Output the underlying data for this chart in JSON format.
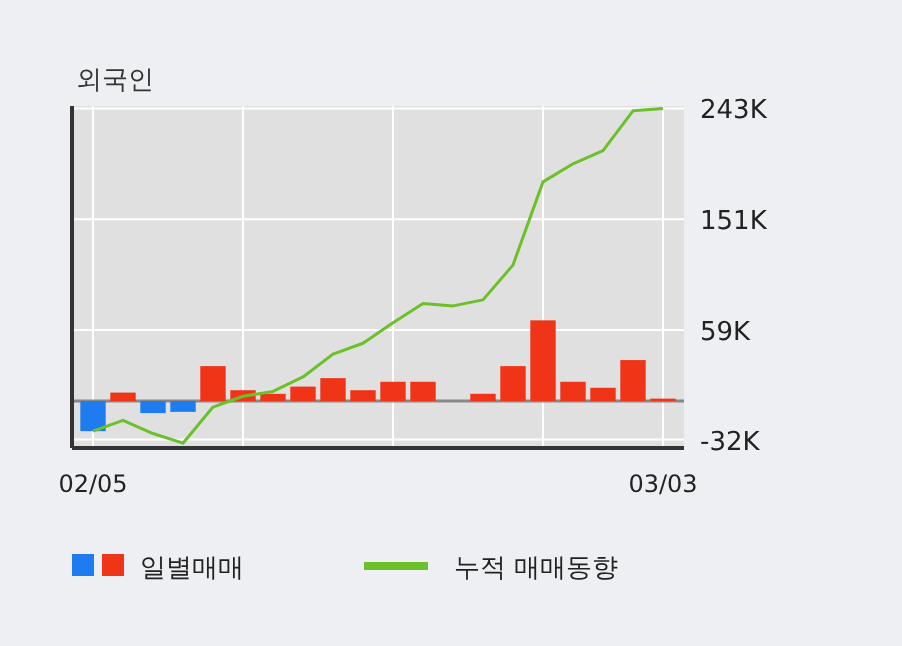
{
  "chart_data": {
    "type": "bar",
    "title": "외국인",
    "categories": [
      "02/05",
      null,
      null,
      null,
      null,
      null,
      null,
      null,
      null,
      null,
      null,
      null,
      null,
      null,
      null,
      null,
      null,
      null,
      null,
      "03/03"
    ],
    "series": [
      {
        "name": "일별매매",
        "colors": [
          "#1e7cf0",
          "#f03418",
          "#1e7cf0",
          "#1e7cf0",
          "#f03418",
          "#f03418",
          "#f03418",
          "#f03418",
          "#f03418",
          "#f03418",
          "#f03418",
          "#f03418",
          "#f03418",
          "#f03418",
          "#f03418",
          "#f03418",
          "#f03418",
          "#f03418",
          "#f03418",
          "#f03418"
        ],
        "values": [
          -25,
          7,
          -10,
          -9,
          29,
          9,
          6,
          12,
          19,
          9,
          16,
          16,
          0,
          6,
          29,
          67,
          16,
          11,
          34,
          2
        ]
      },
      {
        "name": "누적 매매동향",
        "type": "line",
        "color": "#6cc02a",
        "values": [
          -25,
          -16,
          -27,
          -35,
          -5,
          4,
          8,
          20,
          39,
          48,
          65,
          81,
          79,
          84,
          113,
          182,
          197,
          208,
          241,
          243
        ]
      }
    ],
    "ylim": [
      -39,
      245
    ],
    "yticks": [
      {
        "value": -32,
        "label": "-32K"
      },
      {
        "value": 59,
        "label": "59K"
      },
      {
        "value": 151,
        "label": "151K"
      },
      {
        "value": 243,
        "label": "243K"
      }
    ],
    "grid": true,
    "legend": "bottom"
  }
}
